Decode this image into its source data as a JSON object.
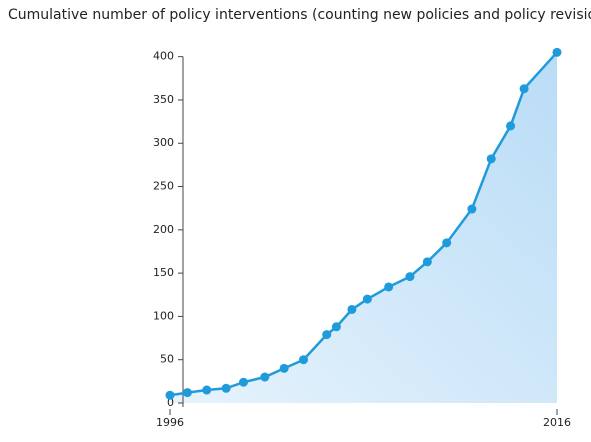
{
  "chart_data": {
    "type": "line",
    "title": "Cumulative number of policy interventions (counting new policies and policy revisions)",
    "x": [
      1996,
      1996.9,
      1997.9,
      1998.9,
      1999.8,
      2000.9,
      2001.9,
      2002.9,
      2004.1,
      2004.6,
      2005.4,
      2006.2,
      2007.3,
      2008.4,
      2009.3,
      2010.3,
      2011.6,
      2012.6,
      2013.6,
      2014.3,
      2016
    ],
    "series": [
      {
        "color": "#1f9bdb",
        "values": [
          9,
          12,
          15,
          17,
          24,
          30,
          40,
          50,
          79,
          88,
          108,
          120,
          134,
          146,
          163,
          185,
          224,
          282,
          320,
          363,
          405
        ]
      }
    ],
    "xlim": [
      1996,
      2016
    ],
    "xticks": [
      1996,
      2016
    ],
    "ylim": [
      0,
      410
    ],
    "yticks": [
      0,
      50,
      100,
      150,
      200,
      250,
      300,
      350,
      400
    ],
    "area_fill": true
  }
}
